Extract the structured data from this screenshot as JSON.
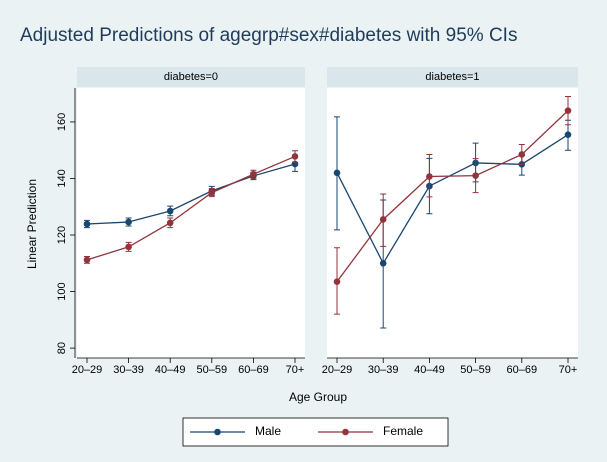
{
  "chart_data": {
    "type": "line",
    "title": "Adjusted Predictions of agegrp#sex#diabetes with 95% CIs",
    "x_label": "Age Group",
    "y_label": "Linear Prediction",
    "categories": [
      "20–29",
      "30–39",
      "40–49",
      "50–59",
      "60–69",
      "70+"
    ],
    "ylim": [
      76.5,
      172
    ],
    "yticks": [
      80,
      100,
      120,
      140,
      160
    ],
    "grid": false,
    "legend_position": "bottom",
    "series": [
      {
        "name": "Male",
        "color": "#1a476f"
      },
      {
        "name": "Female",
        "color": "#90353b"
      }
    ],
    "panels": [
      {
        "title": "diabetes=0",
        "series": [
          {
            "values": [
              123.9,
              124.6,
              128.5,
              135.6,
              140.9,
              145.1
            ],
            "ci_low": [
              122.6,
              123.2,
              126.8,
              134.0,
              139.6,
              142.5
            ],
            "ci_high": [
              125.2,
              126.0,
              130.2,
              137.2,
              142.2,
              147.7
            ]
          },
          {
            "values": [
              111.2,
              115.8,
              124.3,
              135.0,
              141.5,
              147.8
            ],
            "ci_low": [
              110.0,
              114.2,
              122.6,
              133.6,
              140.1,
              145.8
            ],
            "ci_high": [
              112.4,
              117.4,
              126.0,
              136.4,
              142.9,
              149.8
            ]
          }
        ]
      },
      {
        "title": "diabetes=1",
        "series": [
          {
            "values": [
              142.0,
              110.0,
              137.3,
              145.5,
              145.0,
              155.5
            ],
            "ci_low": [
              121.8,
              87.1,
              127.5,
              138.8,
              141.2,
              150.0
            ],
            "ci_high": [
              161.8,
              132.4,
              147.1,
              152.5,
              148.6,
              160.6
            ]
          },
          {
            "values": [
              103.5,
              125.5,
              140.7,
              141.0,
              148.5,
              164.0
            ],
            "ci_low": [
              92.0,
              116.0,
              133.5,
              135.0,
              145.0,
              159.0
            ],
            "ci_high": [
              115.5,
              134.5,
              148.5,
              147.0,
              152.0,
              169.0
            ]
          }
        ]
      }
    ]
  }
}
